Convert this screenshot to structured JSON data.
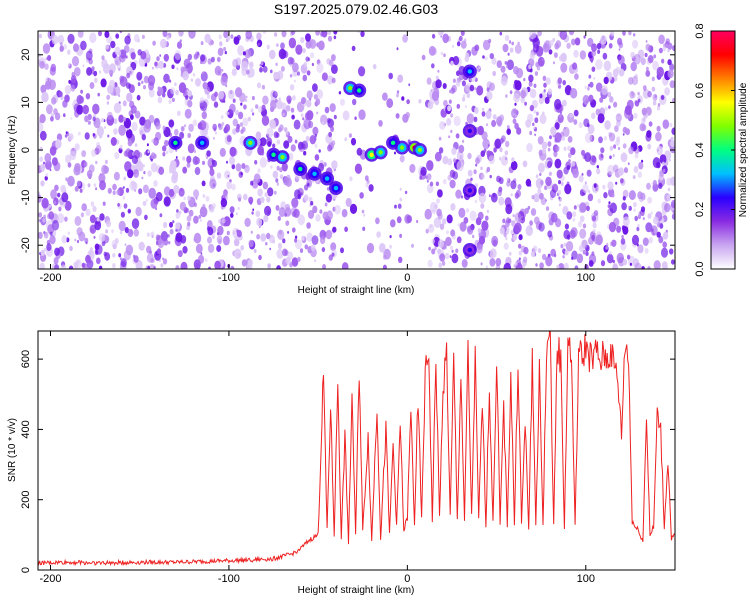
{
  "title": "S197.2025.079.02.46.G03",
  "chart_data": [
    {
      "type": "heatmap",
      "xlabel": "Height of straight line (km)",
      "ylabel": "Frequency (Hz)",
      "xlim": [
        -207,
        150
      ],
      "ylim": [
        -25,
        25
      ],
      "x_ticks": [
        -200,
        -100,
        0,
        100
      ],
      "y_ticks": [
        -20,
        -10,
        0,
        10,
        20
      ],
      "colorbar": {
        "label": "Normalized spectral amplitude",
        "range": [
          0.0,
          0.8
        ],
        "ticks": [
          "0.0",
          "0.2",
          "0.4",
          "0.6",
          "0.8"
        ],
        "colors": [
          "#ffffff",
          "#c9a6f0",
          "#8a2be2",
          "#2a00ff",
          "#00bfff",
          "#00ff80",
          "#80ff00",
          "#ffff00",
          "#ff8000",
          "#ff0000",
          "#ff0060"
        ]
      },
      "signal_track": [
        {
          "x": -130,
          "y": 1.5,
          "amp": 0.4
        },
        {
          "x": -115,
          "y": 1.5,
          "amp": 0.35
        },
        {
          "x": -88,
          "y": 1.5,
          "amp": 0.45
        },
        {
          "x": -75,
          "y": -1.0,
          "amp": 0.4
        },
        {
          "x": -70,
          "y": -1.5,
          "amp": 0.5
        },
        {
          "x": -60,
          "y": -4.0,
          "amp": 0.4
        },
        {
          "x": -52,
          "y": -5.0,
          "amp": 0.35
        },
        {
          "x": -45,
          "y": -6.0,
          "amp": 0.35
        },
        {
          "x": -40,
          "y": -8.0,
          "amp": 0.3
        },
        {
          "x": -32,
          "y": 13.0,
          "amp": 0.45
        },
        {
          "x": -27,
          "y": 12.5,
          "amp": 0.4
        },
        {
          "x": -20,
          "y": -1.0,
          "amp": 0.55
        },
        {
          "x": -15,
          "y": -0.5,
          "amp": 0.5
        },
        {
          "x": -8,
          "y": 1.5,
          "amp": 0.4
        },
        {
          "x": -3,
          "y": 0.5,
          "amp": 0.45
        },
        {
          "x": 4,
          "y": 0.5,
          "amp": 0.7
        },
        {
          "x": 7,
          "y": 0.0,
          "amp": 0.5
        },
        {
          "x": 35,
          "y": 16.5,
          "amp": 0.3
        },
        {
          "x": 35,
          "y": 4.0,
          "amp": 0.25
        },
        {
          "x": 35,
          "y": -8.5,
          "amp": 0.25
        },
        {
          "x": 35,
          "y": -21.0,
          "amp": 0.25
        }
      ]
    },
    {
      "type": "line",
      "xlabel": "Height of straight line (km)",
      "ylabel": "SNR (10 * v/v)",
      "xlim": [
        -207,
        150
      ],
      "ylim": [
        0,
        680
      ],
      "x_ticks": [
        -200,
        -100,
        0,
        100
      ],
      "y_ticks": [
        0,
        200,
        400,
        600
      ],
      "series": [
        {
          "color": "#ee2222",
          "x": [
            -207,
            -190,
            -170,
            -150,
            -130,
            -110,
            -90,
            -75,
            -65,
            -60,
            -55,
            -50,
            -47,
            -45,
            -43,
            -41,
            -39,
            -37,
            -35,
            -33,
            -31,
            -29,
            -27,
            -25,
            -22,
            -20,
            -17,
            -15,
            -12,
            -10,
            -8,
            -6,
            -4,
            -2,
            0,
            2,
            4,
            6,
            8,
            10,
            12,
            14,
            16,
            18,
            20,
            22,
            24,
            26,
            28,
            30,
            32,
            34,
            36,
            38,
            40,
            42,
            44,
            46,
            48,
            50,
            52,
            54,
            56,
            58,
            60,
            62,
            64,
            66,
            68,
            70,
            72,
            74,
            76,
            78,
            80,
            82,
            84,
            86,
            88,
            90,
            92,
            94,
            96,
            98,
            100,
            102,
            104,
            106,
            108,
            110,
            112,
            114,
            116,
            118,
            120,
            122,
            124,
            126,
            128,
            130,
            132,
            134,
            136,
            138,
            140,
            142,
            144,
            146,
            148,
            150
          ],
          "y": [
            20,
            22,
            20,
            22,
            22,
            25,
            28,
            32,
            45,
            60,
            85,
            100,
            560,
            120,
            460,
            100,
            540,
            90,
            380,
            80,
            500,
            95,
            580,
            110,
            380,
            80,
            470,
            90,
            400,
            100,
            360,
            120,
            420,
            110,
            150,
            450,
            130,
            500,
            140,
            550,
            620,
            140,
            600,
            150,
            520,
            620,
            150,
            600,
            140,
            560,
            130,
            620,
            150,
            600,
            140,
            480,
            130,
            520,
            130,
            600,
            140,
            460,
            130,
            560,
            130,
            600,
            130,
            420,
            120,
            600,
            130,
            560,
            120,
            630,
            660,
            130,
            640,
            590,
            120,
            650,
            600,
            120,
            620,
            600,
            640,
            610,
            600,
            620,
            590,
            610,
            600,
            620,
            580,
            540,
            380,
            650,
            600,
            140,
            120,
            110,
            80,
            450,
            100,
            120,
            440,
            400,
            120,
            320,
            90,
            100
          ]
        }
      ]
    }
  ]
}
